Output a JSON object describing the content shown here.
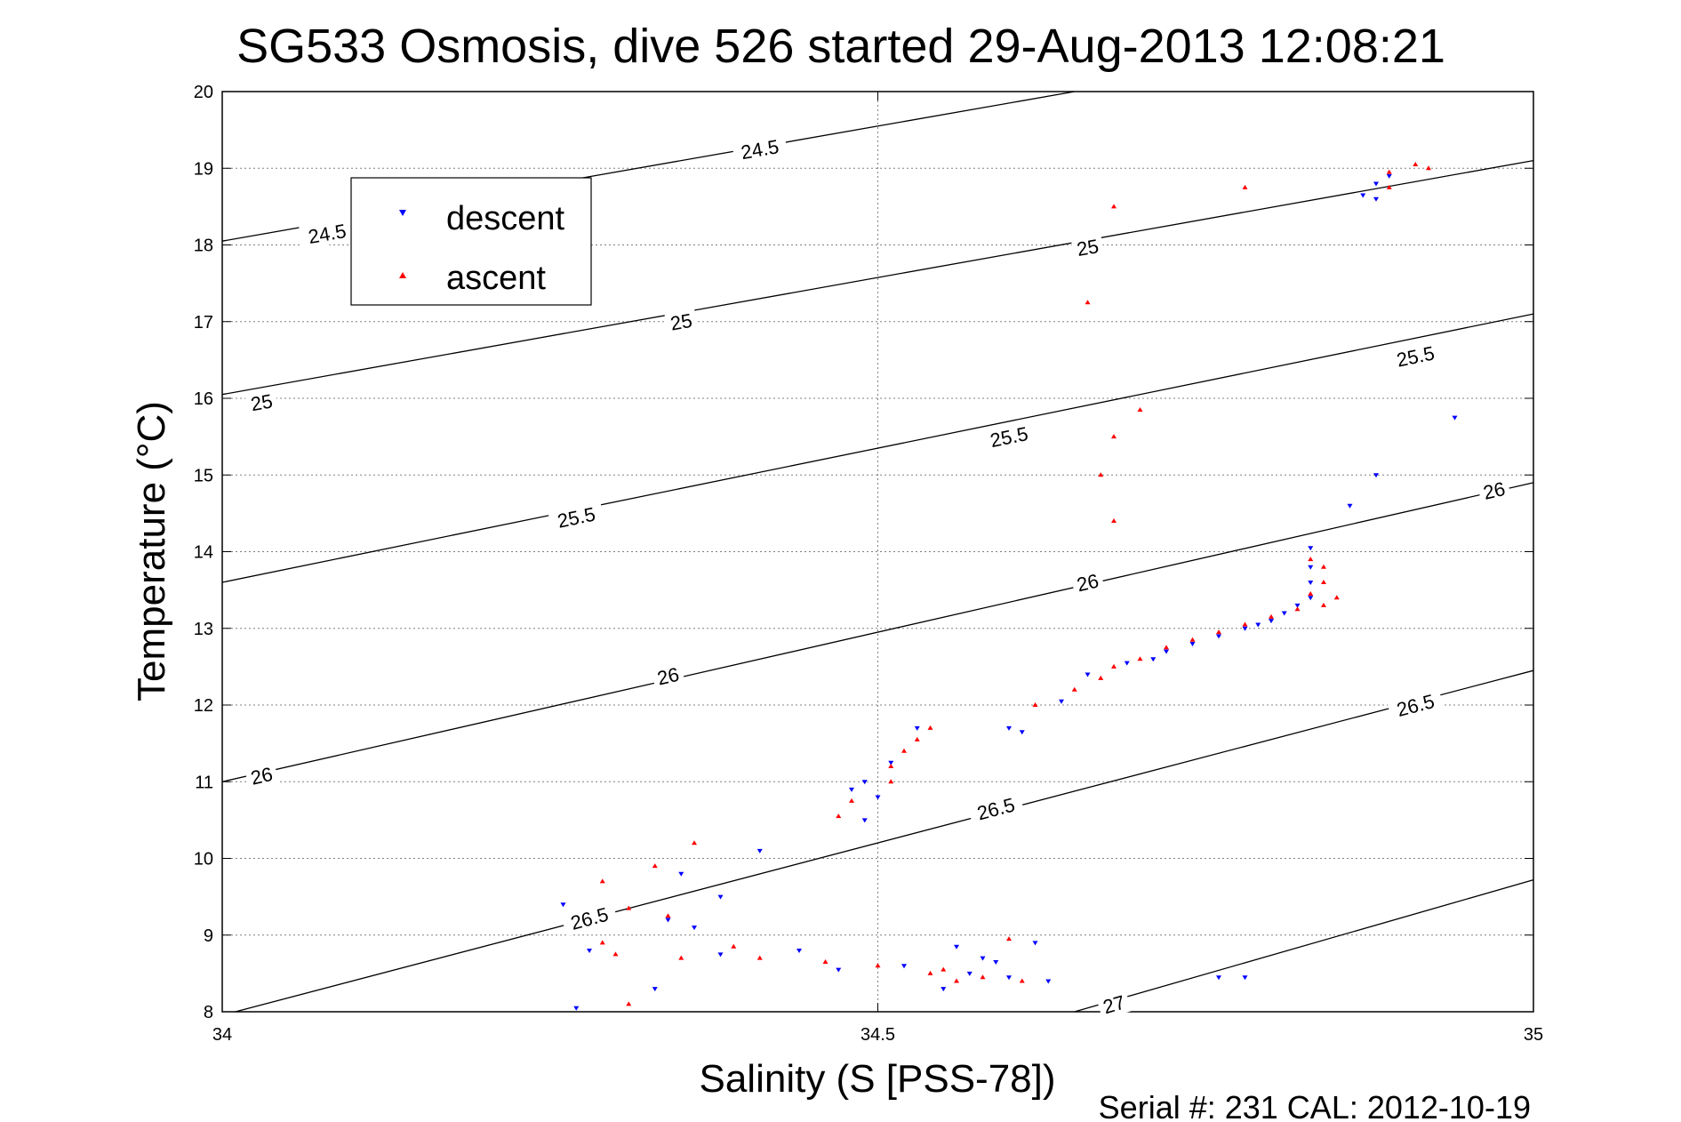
{
  "chart_data": {
    "type": "scatter",
    "title": "SG533 Osmosis, dive 526 started 29-Aug-2013 12:08:21",
    "xlabel": "Salinity (S [PSS-78])",
    "ylabel": "Temperature (°C)",
    "xlim": [
      34,
      35
    ],
    "ylim": [
      8,
      20
    ],
    "x_ticks": [
      34,
      34.5,
      35
    ],
    "x_tick_labels": [
      "34",
      "34.5",
      "35"
    ],
    "y_ticks": [
      8,
      9,
      10,
      11,
      12,
      13,
      14,
      15,
      16,
      17,
      18,
      19,
      20
    ],
    "y_tick_labels": [
      "8",
      "9",
      "10",
      "11",
      "12",
      "13",
      "14",
      "15",
      "16",
      "17",
      "18",
      "19",
      "20"
    ],
    "grid": true,
    "legend_position": "upper-left",
    "footer": "Serial #: 231  CAL: 2012-10-19",
    "contours": [
      {
        "label": "24.5",
        "label_texts": [
          "24.5",
          "24.5"
        ],
        "points": [
          [
            34,
            18.05
          ],
          [
            34.65,
            20
          ]
        ],
        "label_positions": [
          [
            34.08,
            18.15
          ],
          [
            34.41,
            19.25
          ]
        ]
      },
      {
        "label": "25",
        "label_texts": [
          "25",
          "25",
          "25"
        ],
        "points": [
          [
            34,
            16.05
          ],
          [
            35,
            19.1
          ]
        ],
        "label_positions": [
          [
            34.03,
            15.95
          ],
          [
            34.35,
            17.0
          ],
          [
            34.66,
            17.97
          ]
        ]
      },
      {
        "label": "25.5",
        "label_texts": [
          "25.5",
          "25.5",
          "25.5"
        ],
        "points": [
          [
            34,
            13.6
          ],
          [
            35,
            17.1
          ]
        ],
        "label_positions": [
          [
            34.27,
            14.45
          ],
          [
            34.6,
            15.5
          ],
          [
            34.91,
            16.55
          ]
        ]
      },
      {
        "label": "26",
        "label_texts": [
          "26",
          "26",
          "26",
          "26"
        ],
        "points": [
          [
            34,
            11.0
          ],
          [
            35,
            14.9
          ]
        ],
        "label_positions": [
          [
            34.03,
            11.08
          ],
          [
            34.34,
            12.38
          ],
          [
            34.66,
            13.6
          ],
          [
            34.97,
            14.8
          ]
        ]
      },
      {
        "label": "26.5",
        "label_texts": [
          "26.5",
          "26.5",
          "26.5"
        ],
        "points": [
          [
            34.01,
            8.0
          ],
          [
            35,
            12.45
          ]
        ],
        "label_positions": [
          [
            34.28,
            9.22
          ],
          [
            34.59,
            10.65
          ],
          [
            34.91,
            12.0
          ]
        ]
      },
      {
        "label": "27",
        "label_texts": [
          "27"
        ],
        "points": [
          [
            34.65,
            8.0
          ],
          [
            35,
            9.72
          ]
        ],
        "label_positions": [
          [
            34.68,
            8.1
          ]
        ]
      }
    ],
    "series": [
      {
        "name": "descent",
        "color": "#0000ff",
        "marker": "triangle-down",
        "points": [
          [
            34.27,
            8.05
          ],
          [
            34.28,
            8.8
          ],
          [
            34.26,
            9.4
          ],
          [
            34.33,
            8.3
          ],
          [
            34.34,
            9.2
          ],
          [
            34.35,
            9.8
          ],
          [
            34.36,
            9.1
          ],
          [
            34.38,
            9.5
          ],
          [
            34.38,
            8.75
          ],
          [
            34.41,
            10.1
          ],
          [
            34.44,
            8.8
          ],
          [
            34.47,
            8.55
          ],
          [
            34.49,
            10.5
          ],
          [
            34.52,
            8.6
          ],
          [
            34.48,
            10.9
          ],
          [
            34.49,
            11.0
          ],
          [
            34.5,
            10.8
          ],
          [
            34.51,
            11.25
          ],
          [
            34.53,
            11.7
          ],
          [
            34.55,
            8.3
          ],
          [
            34.56,
            8.85
          ],
          [
            34.57,
            8.5
          ],
          [
            34.58,
            8.7
          ],
          [
            34.59,
            8.65
          ],
          [
            34.6,
            8.45
          ],
          [
            34.6,
            11.7
          ],
          [
            34.61,
            11.65
          ],
          [
            34.62,
            8.9
          ],
          [
            34.63,
            8.4
          ],
          [
            34.64,
            12.05
          ],
          [
            34.66,
            12.4
          ],
          [
            34.69,
            12.55
          ],
          [
            34.71,
            12.6
          ],
          [
            34.72,
            12.7
          ],
          [
            34.74,
            12.8
          ],
          [
            34.76,
            12.9
          ],
          [
            34.78,
            13.0
          ],
          [
            34.79,
            13.05
          ],
          [
            34.8,
            13.1
          ],
          [
            34.81,
            13.2
          ],
          [
            34.82,
            13.3
          ],
          [
            34.83,
            13.4
          ],
          [
            34.83,
            13.6
          ],
          [
            34.83,
            13.8
          ],
          [
            34.83,
            14.05
          ],
          [
            34.78,
            8.45
          ],
          [
            34.76,
            8.45
          ],
          [
            34.86,
            14.6
          ],
          [
            34.88,
            15.0
          ],
          [
            34.94,
            15.75
          ],
          [
            34.87,
            18.65
          ],
          [
            34.88,
            18.8
          ],
          [
            34.88,
            18.6
          ],
          [
            34.89,
            18.9
          ]
        ]
      },
      {
        "name": "ascent",
        "color": "#ff0000",
        "marker": "triangle-up",
        "points": [
          [
            34.31,
            8.1
          ],
          [
            34.29,
            8.9
          ],
          [
            34.3,
            8.75
          ],
          [
            34.29,
            9.7
          ],
          [
            34.31,
            9.35
          ],
          [
            34.33,
            9.9
          ],
          [
            34.34,
            9.25
          ],
          [
            34.35,
            8.7
          ],
          [
            34.36,
            10.2
          ],
          [
            34.39,
            8.85
          ],
          [
            34.41,
            8.7
          ],
          [
            34.46,
            8.65
          ],
          [
            34.47,
            10.55
          ],
          [
            34.5,
            8.6
          ],
          [
            34.48,
            10.75
          ],
          [
            34.51,
            11.0
          ],
          [
            34.51,
            11.2
          ],
          [
            34.52,
            11.4
          ],
          [
            34.53,
            11.55
          ],
          [
            34.54,
            11.7
          ],
          [
            34.54,
            8.5
          ],
          [
            34.55,
            8.55
          ],
          [
            34.56,
            8.4
          ],
          [
            34.58,
            8.45
          ],
          [
            34.6,
            8.95
          ],
          [
            34.61,
            8.4
          ],
          [
            34.62,
            12.0
          ],
          [
            34.65,
            12.2
          ],
          [
            34.67,
            12.35
          ],
          [
            34.68,
            12.5
          ],
          [
            34.7,
            12.6
          ],
          [
            34.72,
            12.75
          ],
          [
            34.74,
            12.85
          ],
          [
            34.76,
            12.95
          ],
          [
            34.78,
            13.05
          ],
          [
            34.8,
            13.15
          ],
          [
            34.82,
            13.25
          ],
          [
            34.83,
            13.45
          ],
          [
            34.84,
            13.3
          ],
          [
            34.85,
            13.4
          ],
          [
            34.84,
            13.6
          ],
          [
            34.84,
            13.8
          ],
          [
            34.83,
            13.9
          ],
          [
            34.66,
            17.25
          ],
          [
            34.67,
            15.0
          ],
          [
            34.68,
            14.4
          ],
          [
            34.68,
            15.5
          ],
          [
            34.7,
            15.85
          ],
          [
            34.68,
            18.5
          ],
          [
            34.78,
            18.75
          ],
          [
            34.89,
            18.75
          ],
          [
            34.89,
            18.95
          ],
          [
            34.91,
            19.05
          ],
          [
            34.92,
            19.0
          ]
        ]
      }
    ]
  }
}
